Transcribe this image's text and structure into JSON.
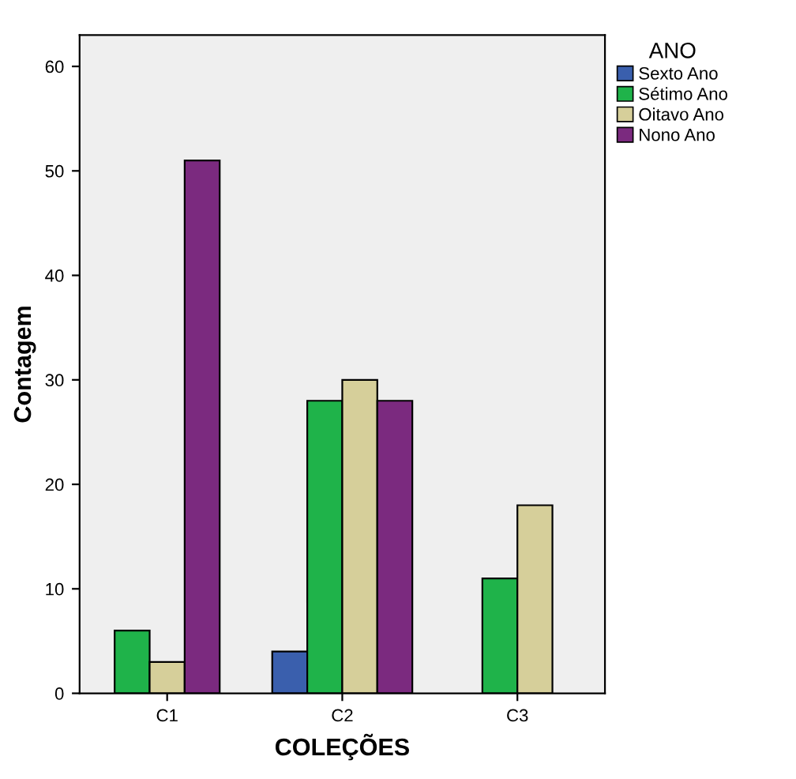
{
  "chart_data": {
    "type": "bar",
    "xlabel": "COLEÇÕES",
    "ylabel": "Contagem",
    "legend_title": "ANO",
    "legend": "right",
    "categories": [
      "C1",
      "C2",
      "C3"
    ],
    "series": [
      {
        "name": "Sexto Ano",
        "color": "#3a5fad",
        "values": [
          null,
          4,
          null
        ]
      },
      {
        "name": "Sétimo Ano",
        "color": "#1fb34a",
        "values": [
          6,
          28,
          11
        ]
      },
      {
        "name": "Oitavo Ano",
        "color": "#d6cf9a",
        "values": [
          3,
          30,
          18
        ]
      },
      {
        "name": "Nono Ano",
        "color": "#7b2a7f",
        "values": [
          51,
          28,
          null
        ]
      }
    ],
    "ylim": [
      0,
      63
    ],
    "yticks": [
      0,
      10,
      20,
      30,
      40,
      50,
      60
    ],
    "grid": false
  }
}
